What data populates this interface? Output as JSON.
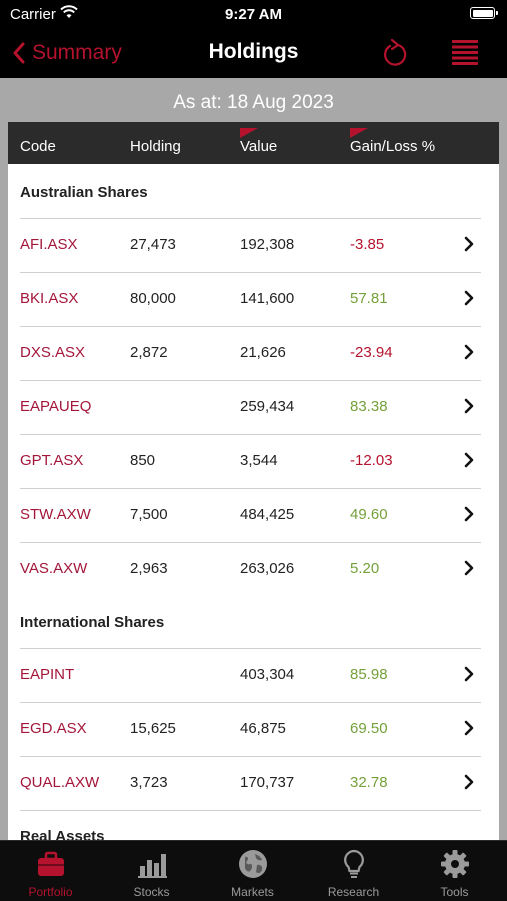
{
  "status_bar": {
    "carrier": "Carrier",
    "time": "9:27 AM"
  },
  "nav": {
    "back_label": "Summary",
    "title": "Holdings"
  },
  "as_at": "As at: 18 Aug 2023",
  "columns": [
    "Code",
    "Holding",
    "Value",
    "Gain/Loss %"
  ],
  "sections": [
    {
      "title": "Australian Shares",
      "rows": [
        {
          "code": "AFI.ASX",
          "holding": "27,473",
          "value": "192,308",
          "gain": "-3.85"
        },
        {
          "code": "BKI.ASX",
          "holding": "80,000",
          "value": "141,600",
          "gain": "57.81"
        },
        {
          "code": "DXS.ASX",
          "holding": "2,872",
          "value": "21,626",
          "gain": "-23.94"
        },
        {
          "code": "EAPAUEQ",
          "holding": "",
          "value": "259,434",
          "gain": "83.38"
        },
        {
          "code": "GPT.ASX",
          "holding": "850",
          "value": "3,544",
          "gain": "-12.03"
        },
        {
          "code": "STW.AXW",
          "holding": "7,500",
          "value": "484,425",
          "gain": "49.60"
        },
        {
          "code": "VAS.AXW",
          "holding": "2,963",
          "value": "263,026",
          "gain": "5.20"
        }
      ]
    },
    {
      "title": "International Shares",
      "rows": [
        {
          "code": "EAPINT",
          "holding": "",
          "value": "403,304",
          "gain": "85.98"
        },
        {
          "code": "EGD.ASX",
          "holding": "15,625",
          "value": "46,875",
          "gain": "69.50"
        },
        {
          "code": "QUAL.AXW",
          "holding": "3,723",
          "value": "170,737",
          "gain": "32.78"
        }
      ]
    },
    {
      "title": "Real Assets",
      "rows": []
    }
  ],
  "tabs": [
    {
      "label": "Portfolio",
      "icon": "briefcase-icon",
      "active": true
    },
    {
      "label": "Stocks",
      "icon": "bar-chart-icon",
      "active": false
    },
    {
      "label": "Markets",
      "icon": "globe-icon",
      "active": false
    },
    {
      "label": "Research",
      "icon": "lightbulb-icon",
      "active": false
    },
    {
      "label": "Tools",
      "icon": "gear-icon",
      "active": false
    }
  ],
  "colors": {
    "accent": "#b4122d",
    "positive": "#74a03a",
    "background": "#a8a8a8",
    "header": "#2b2b2b"
  }
}
